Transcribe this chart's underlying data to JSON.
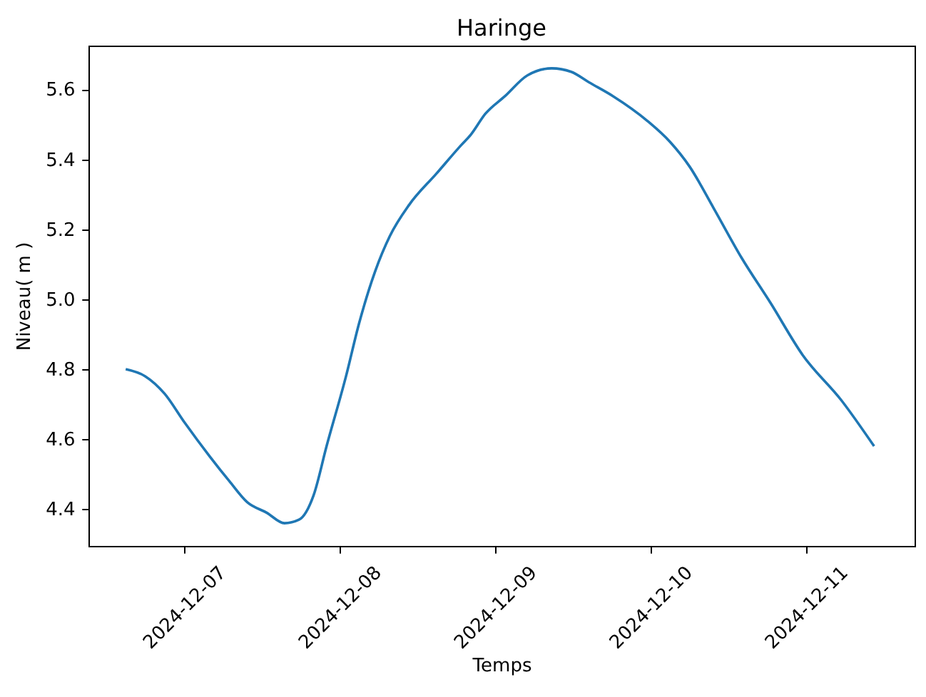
{
  "chart_data": {
    "type": "line",
    "title": "Haringe",
    "xlabel": "Temps",
    "ylabel": "Niveau( m )",
    "color": "#1f77b4",
    "x": [
      "2024-12-06T15:00",
      "2024-12-06T18:00",
      "2024-12-06T21:00",
      "2024-12-07T00:00",
      "2024-12-07T04:00",
      "2024-12-07T07:00",
      "2024-12-07T09:45",
      "2024-12-07T12:45",
      "2024-12-07T15:30",
      "2024-12-07T17:45",
      "2024-12-07T20:00",
      "2024-12-07T22:00",
      "2024-12-08T01:00",
      "2024-12-08T03:00",
      "2024-12-08T05:30",
      "2024-12-08T07:45",
      "2024-12-08T10:45",
      "2024-12-08T15:00",
      "2024-12-08T18:45",
      "2024-12-08T20:15",
      "2024-12-08T22:30",
      "2024-12-09T01:30",
      "2024-12-09T05:00",
      "2024-12-09T08:45",
      "2024-12-09T11:45",
      "2024-12-09T14:30",
      "2024-12-09T18:15",
      "2024-12-09T23:30",
      "2024-12-10T03:00",
      "2024-12-10T06:00",
      "2024-12-10T09:45",
      "2024-12-10T14:00",
      "2024-12-10T18:30",
      "2024-12-10T23:30",
      "2024-12-11T05:30",
      "2024-12-11T10:30"
    ],
    "values": [
      4.8,
      4.78,
      4.73,
      4.65,
      4.55,
      4.48,
      4.42,
      4.39,
      4.36,
      4.37,
      4.44,
      4.58,
      4.78,
      4.93,
      5.08,
      5.18,
      5.27,
      5.36,
      5.44,
      5.47,
      5.53,
      5.58,
      5.64,
      5.66,
      5.65,
      5.62,
      5.58,
      5.51,
      5.45,
      5.38,
      5.26,
      5.12,
      4.99,
      4.84,
      4.71,
      4.58
    ],
    "xlim": [
      "2024-12-06T09:15",
      "2024-12-11T16:45"
    ],
    "xticks": [
      "2024-12-07",
      "2024-12-08",
      "2024-12-09",
      "2024-12-10",
      "2024-12-11"
    ],
    "ylim": [
      4.295,
      5.725
    ],
    "yticks": [
      4.4,
      4.6,
      4.8,
      {
        "value": 5,
        "label": "5.0"
      },
      5.2,
      5.4,
      5.6
    ]
  }
}
